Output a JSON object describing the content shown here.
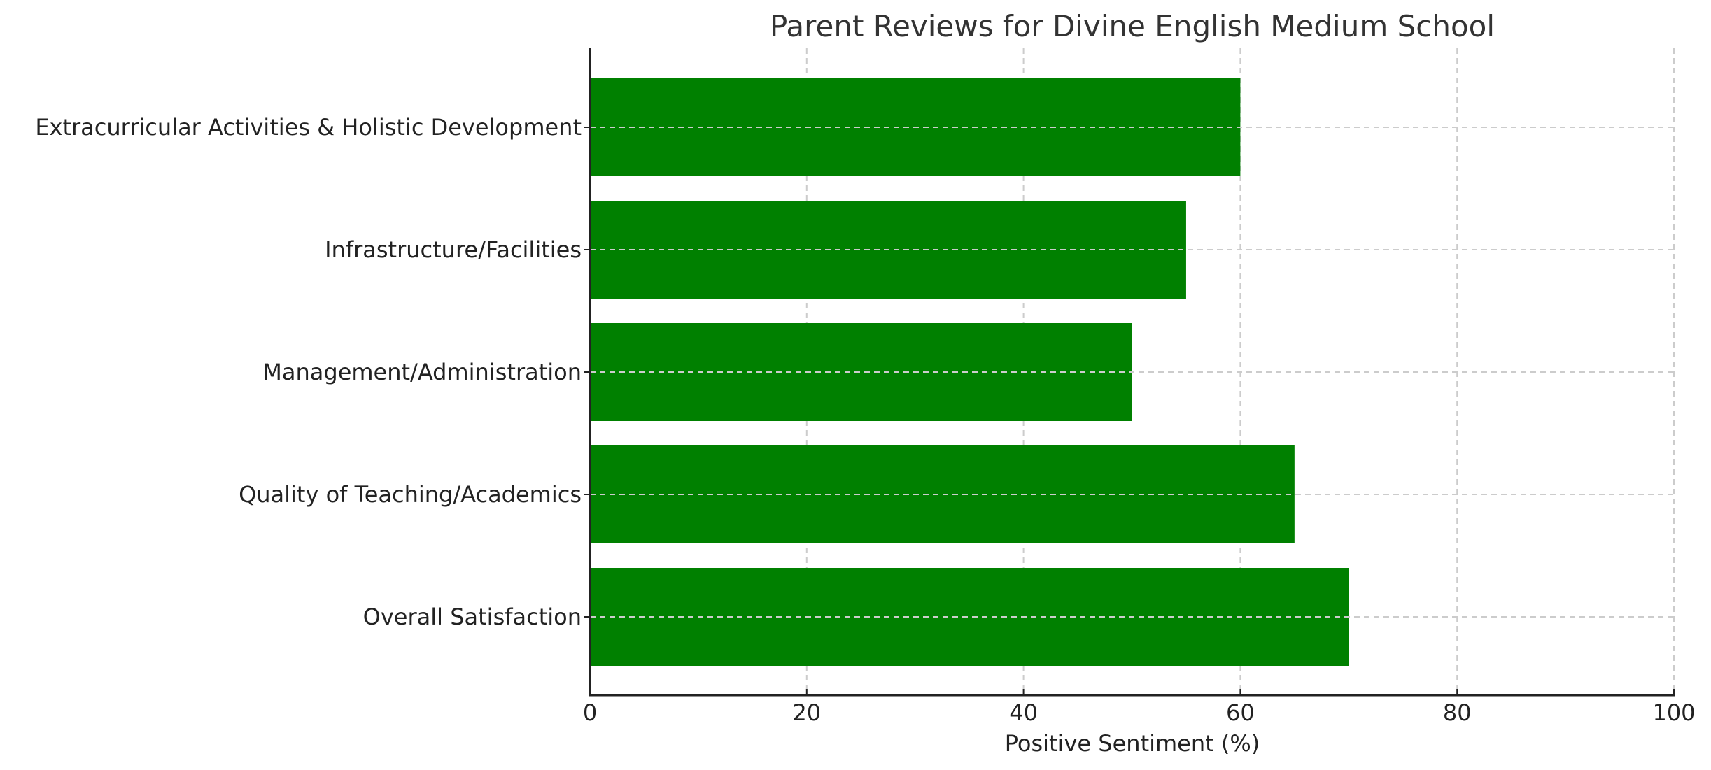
{
  "chart_data": {
    "type": "bar",
    "orientation": "horizontal",
    "title": "Parent Reviews for Divine English Medium School",
    "xlabel": "Positive Sentiment (%)",
    "ylabel": "",
    "categories": [
      "Overall Satisfaction",
      "Quality of Teaching/Academics",
      "Management/Administration",
      "Infrastructure/Facilities",
      "Extracurricular Activities & Holistic Development"
    ],
    "values": [
      70,
      65,
      50,
      55,
      60
    ],
    "xlim": [
      0,
      100
    ],
    "xticks": [
      0,
      20,
      40,
      60,
      80,
      100
    ],
    "grid": true,
    "grid_style": "dashed",
    "legend": null,
    "colors": {
      "bar": "#008000",
      "grid": "#cccccc",
      "axis": "#222222",
      "title": "#333333"
    }
  }
}
